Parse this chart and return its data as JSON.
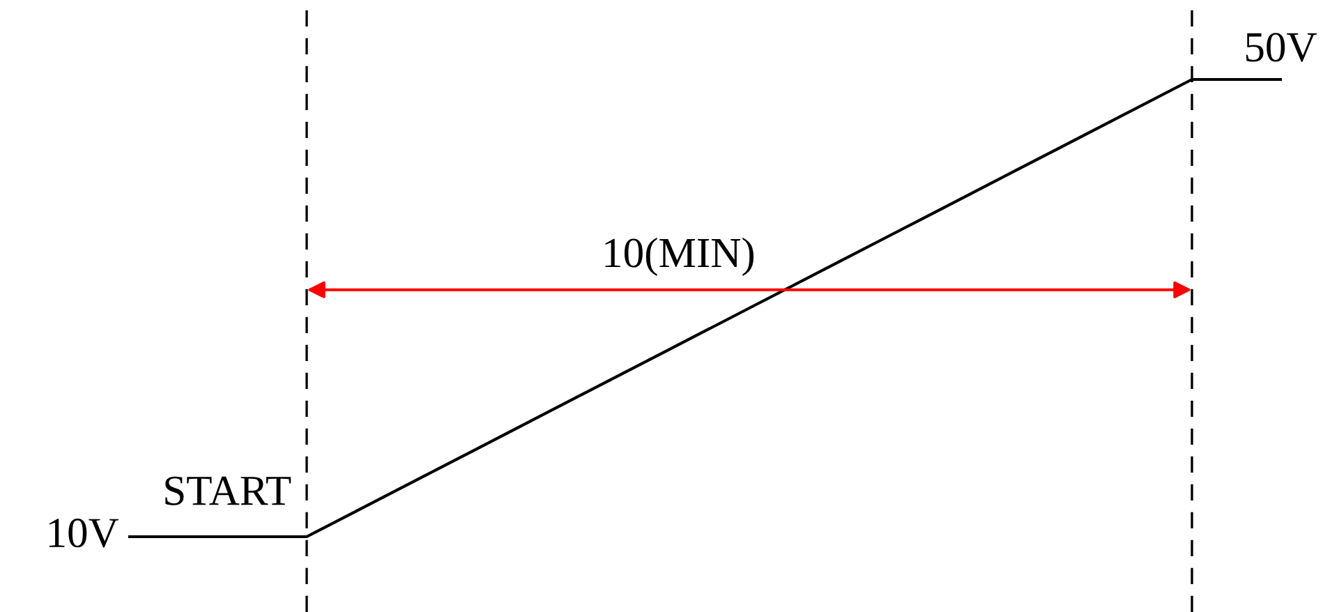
{
  "chart_data": {
    "type": "line",
    "categories": [
      null,
      null,
      null,
      null,
      null,
      null,
      null,
      null,
      null,
      null,
      null,
      null,
      null,
      null
    ],
    "values": [
      10,
      10,
      10,
      14,
      18,
      22,
      26,
      30,
      34,
      38,
      42,
      46,
      50,
      50
    ],
    "color": "#000000",
    "value_labels": [
      "10V",
      null,
      null,
      null,
      null,
      null,
      null,
      null,
      null,
      null,
      null,
      null,
      null,
      "50V"
    ],
    "annotations": [
      "START",
      "10(MIN)"
    ]
  }
}
